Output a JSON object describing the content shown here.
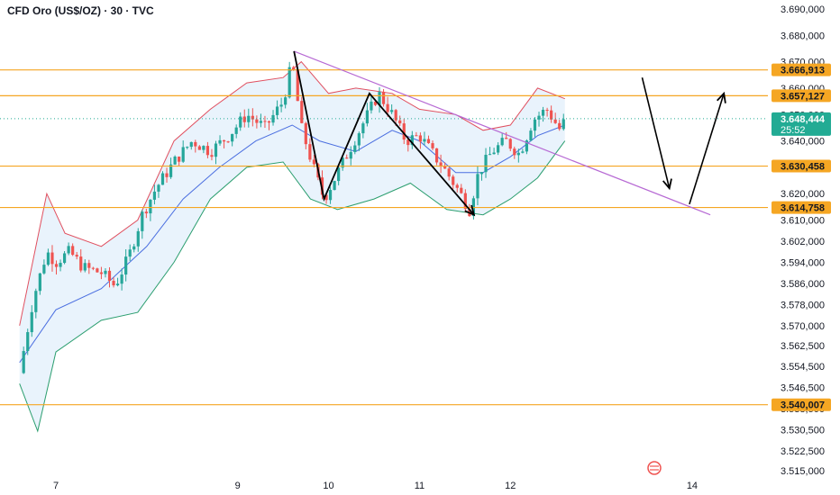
{
  "header": {
    "title": "CFD Oro (US$/OZ) · 30 · TVC"
  },
  "chart_data": {
    "type": "candlestick",
    "symbol_title": "CFD Oro (US$/OZ) · 30 · TVC",
    "y_axis": {
      "range": [
        3512,
        3692
      ],
      "ticks": [
        "3.690,000",
        "3.680,000",
        "3.670,000",
        "3.660,000",
        "3.650,000",
        "3.640,000",
        "3.620,000",
        "3.610,000",
        "3.602,000",
        "3.594,000",
        "3.586,000",
        "3.578,000",
        "3.570,000",
        "3.562,500",
        "3.554,500",
        "3.546,500",
        "3.538,500",
        "3.530,500",
        "3.522,500",
        "3.515,000"
      ],
      "tick_values": [
        3690,
        3680,
        3670,
        3660,
        3650,
        3640,
        3620,
        3610,
        3602,
        3594,
        3586,
        3578,
        3570,
        3562.5,
        3554.5,
        3546.5,
        3538.5,
        3530.5,
        3522.5,
        3515
      ]
    },
    "x_axis": {
      "labels": [
        "7",
        "9",
        "10",
        "11",
        "12",
        "14"
      ],
      "label_day": [
        7,
        9,
        10,
        11,
        12,
        14
      ],
      "range_day": [
        6.6,
        15.1
      ]
    },
    "horizontal_levels": [
      {
        "label": "3.666,913",
        "value": 3666.913
      },
      {
        "label": "3.657,127",
        "value": 3657.127
      },
      {
        "label": "3.630,458",
        "value": 3630.458
      },
      {
        "label": "3.614,758",
        "value": 3614.758
      },
      {
        "label": "3.540,007",
        "value": 3540.007
      }
    ],
    "last_price": {
      "label": "3.648,444",
      "value": 3648.444,
      "countdown": "25:52"
    },
    "price_path": [
      [
        6.6,
        3552
      ],
      [
        6.75,
        3580
      ],
      [
        6.9,
        3598
      ],
      [
        7.0,
        3594
      ],
      [
        7.15,
        3598
      ],
      [
        7.3,
        3592
      ],
      [
        7.5,
        3590
      ],
      [
        7.65,
        3585
      ],
      [
        7.8,
        3596
      ],
      [
        7.95,
        3612
      ],
      [
        8.1,
        3622
      ],
      [
        8.3,
        3632
      ],
      [
        8.5,
        3640
      ],
      [
        8.7,
        3636
      ],
      [
        8.9,
        3642
      ],
      [
        9.1,
        3650
      ],
      [
        9.3,
        3645
      ],
      [
        9.5,
        3655
      ],
      [
        9.6,
        3670
      ],
      [
        9.7,
        3645
      ],
      [
        9.85,
        3628
      ],
      [
        9.95,
        3618
      ],
      [
        10.1,
        3628
      ],
      [
        10.25,
        3638
      ],
      [
        10.4,
        3648
      ],
      [
        10.55,
        3658
      ],
      [
        10.7,
        3650
      ],
      [
        10.85,
        3640
      ],
      [
        11.0,
        3642
      ],
      [
        11.15,
        3635
      ],
      [
        11.3,
        3628
      ],
      [
        11.45,
        3620
      ],
      [
        11.55,
        3614
      ],
      [
        11.65,
        3628
      ],
      [
        11.8,
        3636
      ],
      [
        11.95,
        3640
      ],
      [
        12.1,
        3635
      ],
      [
        12.25,
        3648
      ],
      [
        12.4,
        3652
      ],
      [
        12.55,
        3644
      ],
      [
        12.6,
        3648
      ]
    ],
    "moving_average_path": [
      [
        6.6,
        3556
      ],
      [
        7.0,
        3576
      ],
      [
        7.5,
        3584
      ],
      [
        8.0,
        3600
      ],
      [
        8.4,
        3618
      ],
      [
        8.8,
        3630
      ],
      [
        9.2,
        3640
      ],
      [
        9.6,
        3646
      ],
      [
        9.9,
        3640
      ],
      [
        10.3,
        3636
      ],
      [
        10.7,
        3644
      ],
      [
        11.0,
        3640
      ],
      [
        11.4,
        3628
      ],
      [
        11.7,
        3628
      ],
      [
        12.0,
        3634
      ],
      [
        12.3,
        3642
      ],
      [
        12.6,
        3646
      ]
    ],
    "band_upper_path": [
      [
        6.6,
        3570
      ],
      [
        6.9,
        3620
      ],
      [
        7.1,
        3605
      ],
      [
        7.5,
        3600
      ],
      [
        7.9,
        3610
      ],
      [
        8.3,
        3640
      ],
      [
        8.7,
        3652
      ],
      [
        9.1,
        3662
      ],
      [
        9.5,
        3664
      ],
      [
        9.7,
        3670
      ],
      [
        10.0,
        3658
      ],
      [
        10.3,
        3660
      ],
      [
        10.7,
        3658
      ],
      [
        11.0,
        3652
      ],
      [
        11.4,
        3650
      ],
      [
        11.7,
        3644
      ],
      [
        12.0,
        3646
      ],
      [
        12.3,
        3660
      ],
      [
        12.6,
        3656
      ]
    ],
    "band_lower_path": [
      [
        6.6,
        3548
      ],
      [
        6.8,
        3530
      ],
      [
        7.0,
        3560
      ],
      [
        7.5,
        3572
      ],
      [
        7.9,
        3575
      ],
      [
        8.3,
        3594
      ],
      [
        8.7,
        3618
      ],
      [
        9.1,
        3630
      ],
      [
        9.5,
        3632
      ],
      [
        9.8,
        3618
      ],
      [
        10.1,
        3614
      ],
      [
        10.5,
        3618
      ],
      [
        10.9,
        3624
      ],
      [
        11.3,
        3614
      ],
      [
        11.7,
        3612
      ],
      [
        12.0,
        3618
      ],
      [
        12.3,
        3626
      ],
      [
        12.6,
        3640
      ]
    ],
    "trendline": [
      [
        9.62,
        3674
      ],
      [
        14.2,
        3612
      ]
    ],
    "zigzag": [
      [
        9.62,
        3674
      ],
      [
        9.95,
        3618
      ],
      [
        10.45,
        3658
      ],
      [
        11.6,
        3612
      ]
    ],
    "projection": [
      [
        13.45,
        3664
      ],
      [
        13.75,
        3622
      ],
      [
        13.97,
        3616
      ],
      [
        14.35,
        3658
      ]
    ],
    "colors": {
      "level_line": "#f5a623",
      "level_badge": "#f5a623",
      "last_price_badge": "#22ab94",
      "trendline": "#b76ad4",
      "upper_band": "#e04f5f",
      "lower_band": "#2b9e6f",
      "moving_average": "#4a6ee0",
      "band_fill": "#e3f0fb",
      "bull_candle": "#26a69a",
      "bear_candle": "#ef5350",
      "drawing": "#000000"
    },
    "grid": false
  }
}
